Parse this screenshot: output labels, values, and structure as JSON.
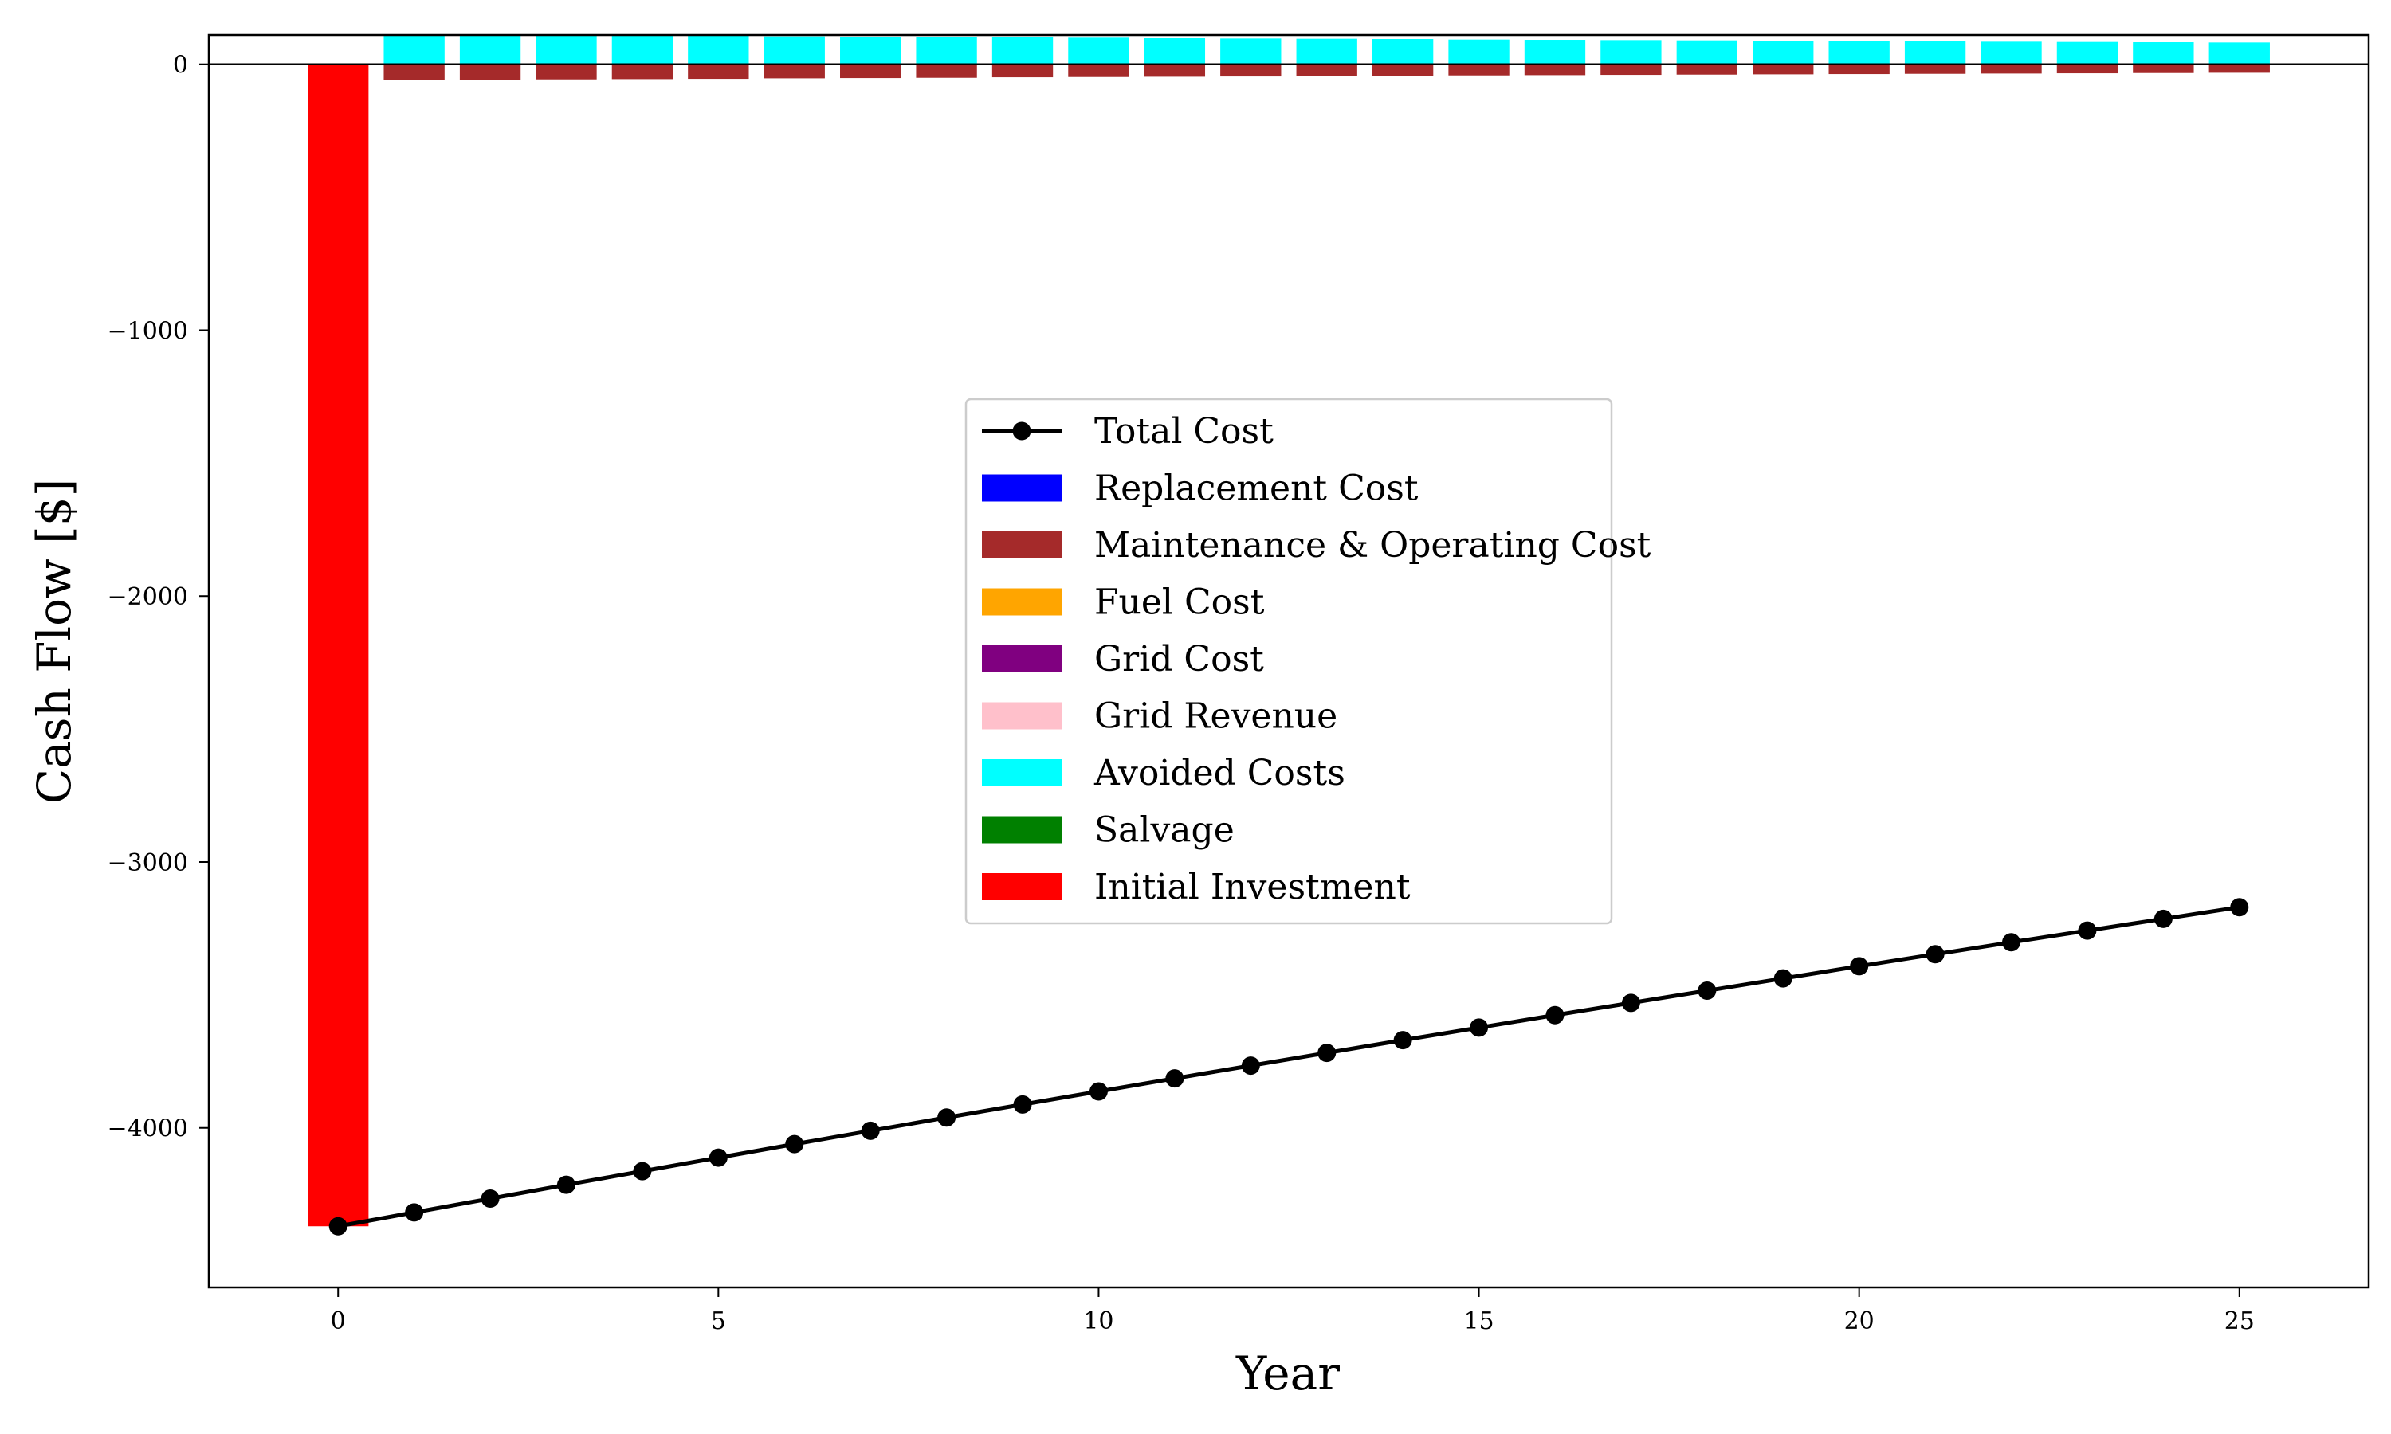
{
  "chart_data": {
    "type": "bar",
    "xlabel": "Year",
    "ylabel": "Cash Flow [$]",
    "xlim": [
      -1.7,
      26.7
    ],
    "ylim": [
      -4600,
      110
    ],
    "xticks": [
      0,
      5,
      10,
      15,
      20,
      25
    ],
    "yticks": [
      0,
      -1000,
      -2000,
      -3000,
      -4000
    ],
    "ytick_labels": [
      "0",
      "−1000",
      "−2000",
      "−3000",
      "−4000"
    ],
    "zero_line": true,
    "grid": false,
    "legend_position": "center",
    "x": [
      0,
      1,
      2,
      3,
      4,
      5,
      6,
      7,
      8,
      9,
      10,
      11,
      12,
      13,
      14,
      15,
      16,
      17,
      18,
      19,
      20,
      21,
      22,
      23,
      24,
      25
    ],
    "series": [
      {
        "name": "Total Cost",
        "kind": "line",
        "color": "#000000",
        "values": [
          -4370,
          -4318,
          -4266,
          -4214,
          -4163,
          -4112,
          -4061,
          -4011,
          -3961,
          -3912,
          -3863,
          -3814,
          -3766,
          -3718,
          -3670,
          -3623,
          -3576,
          -3530,
          -3484,
          -3438,
          -3392,
          -3347,
          -3302,
          -3258,
          -3214,
          -3170
        ]
      },
      {
        "name": "Replacement Cost",
        "kind": "bar",
        "color": "#0000ff",
        "values": [
          0,
          0,
          0,
          0,
          0,
          0,
          0,
          0,
          0,
          0,
          0,
          0,
          0,
          0,
          0,
          0,
          0,
          0,
          0,
          0,
          0,
          0,
          0,
          0,
          0,
          0
        ]
      },
      {
        "name": "Maintenance & Operating Cost",
        "kind": "bar",
        "color": "#a52a2a",
        "values": [
          0,
          -60,
          -59,
          -57,
          -56,
          -55,
          -53,
          -52,
          -51,
          -49,
          -48,
          -47,
          -46,
          -44,
          -43,
          -42,
          -41,
          -40,
          -39,
          -38,
          -37,
          -36,
          -35,
          -34,
          -33,
          -32
        ]
      },
      {
        "name": "Fuel Cost",
        "kind": "bar",
        "color": "#ffa500",
        "values": [
          0,
          0,
          0,
          0,
          0,
          0,
          0,
          0,
          0,
          0,
          0,
          0,
          0,
          0,
          0,
          0,
          0,
          0,
          0,
          0,
          0,
          0,
          0,
          0,
          0,
          0
        ]
      },
      {
        "name": "Grid Cost",
        "kind": "bar",
        "color": "#800080",
        "values": [
          0,
          0,
          0,
          0,
          0,
          0,
          0,
          0,
          0,
          0,
          0,
          0,
          0,
          0,
          0,
          0,
          0,
          0,
          0,
          0,
          0,
          0,
          0,
          0,
          0,
          0
        ]
      },
      {
        "name": "Grid Revenue",
        "kind": "bar",
        "color": "#ffc0cb",
        "values": [
          0,
          0,
          0,
          0,
          0,
          0,
          0,
          0,
          0,
          0,
          0,
          0,
          0,
          0,
          0,
          0,
          0,
          0,
          0,
          0,
          0,
          0,
          0,
          0,
          0,
          0
        ]
      },
      {
        "name": "Avoided Costs",
        "kind": "bar",
        "color": "#00ffff",
        "values": [
          0,
          112,
          111,
          110,
          108,
          107,
          105,
          104,
          102,
          101,
          100,
          98,
          97,
          96,
          95,
          93,
          92,
          91,
          90,
          88,
          87,
          86,
          85,
          84,
          83,
          82
        ]
      },
      {
        "name": "Salvage",
        "kind": "bar",
        "color": "#008000",
        "values": [
          0,
          0,
          0,
          0,
          0,
          0,
          0,
          0,
          0,
          0,
          0,
          0,
          0,
          0,
          0,
          0,
          0,
          0,
          0,
          0,
          0,
          0,
          0,
          0,
          0,
          0
        ]
      },
      {
        "name": "Initial Investment",
        "kind": "bar",
        "color": "#ff0000",
        "values": [
          -4370,
          0,
          0,
          0,
          0,
          0,
          0,
          0,
          0,
          0,
          0,
          0,
          0,
          0,
          0,
          0,
          0,
          0,
          0,
          0,
          0,
          0,
          0,
          0,
          0,
          0
        ]
      }
    ]
  }
}
